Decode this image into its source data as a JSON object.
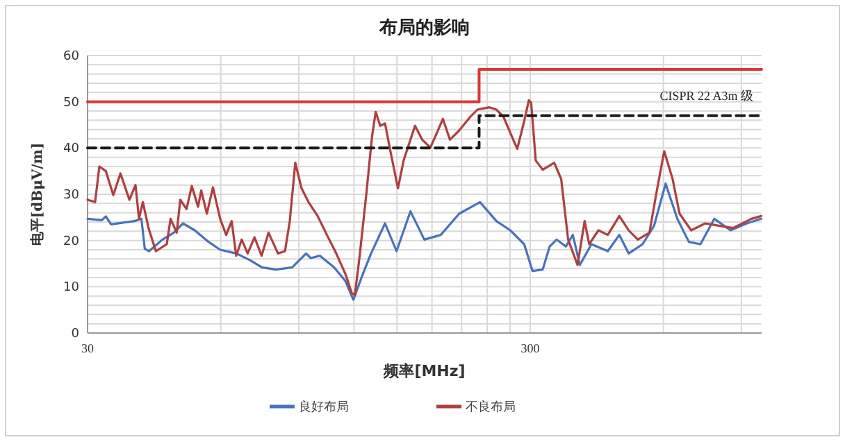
{
  "chart_data": {
    "type": "line",
    "title": "布局的影响",
    "xlabel": "频率[MHz]",
    "ylabel": "电平[dBμV/m]",
    "log": "x",
    "xlim": [
      30,
      1000
    ],
    "ylim": [
      0,
      60
    ],
    "xticks": [
      30,
      {
        "value": 60,
        "label": null
      },
      {
        "value": 90,
        "label": null
      },
      {
        "value": 120,
        "label": null
      },
      {
        "value": 150,
        "label": null
      },
      {
        "value": 180,
        "label": null
      },
      {
        "value": 210,
        "label": null
      },
      {
        "value": 240,
        "label": null
      },
      {
        "value": 270,
        "label": null
      },
      300,
      {
        "value": 600,
        "label": null
      },
      {
        "value": 900,
        "label": null
      }
    ],
    "yticks": [
      0,
      {
        "value": 2,
        "label": null
      },
      {
        "value": 4,
        "label": null
      },
      {
        "value": 6,
        "label": null
      },
      {
        "value": 8,
        "label": null
      },
      10,
      {
        "value": 12,
        "label": null
      },
      {
        "value": 14,
        "label": null
      },
      {
        "value": 16,
        "label": null
      },
      {
        "value": 18,
        "label": null
      },
      20,
      {
        "value": 22,
        "label": null
      },
      {
        "value": 24,
        "label": null
      },
      {
        "value": 26,
        "label": null
      },
      {
        "value": 28,
        "label": null
      },
      30,
      {
        "value": 32,
        "label": null
      },
      {
        "value": 34,
        "label": null
      },
      {
        "value": 36,
        "label": null
      },
      {
        "value": 38,
        "label": null
      },
      40,
      {
        "value": 42,
        "label": null
      },
      {
        "value": 44,
        "label": null
      },
      {
        "value": 46,
        "label": null
      },
      {
        "value": 48,
        "label": null
      },
      50,
      {
        "value": 52,
        "label": null
      },
      {
        "value": 54,
        "label": null
      },
      {
        "value": 56,
        "label": null
      },
      {
        "value": 58,
        "label": null
      },
      60
    ],
    "grid": true,
    "legend": "bottom",
    "annotations": [
      "CISPR 22 A3m 级"
    ],
    "series": [
      {
        "name": "良好布局",
        "color": "#4472c4",
        "x": [
          30,
          32.3,
          33.0,
          33.9,
          38.3,
          39.7,
          40.4,
          41.3,
          44.3,
          47,
          49.3,
          52.4,
          56.3,
          59.8,
          65.1,
          70,
          74.3,
          80,
          87,
          93.5,
          95.8,
          100.5,
          108.1,
          114.8,
          119.6,
          125,
          131.1,
          141,
          149.7,
          160.9,
          173,
          188.4,
          207.4,
          231.1,
          251.6,
          270.5,
          290.8,
          303.7,
          320.2,
          332,
          344.2,
          361.2,
          374.6,
          388.4,
          412.6,
          449.2,
          477,
          500.8,
          538.3,
          571.6,
          606.9,
          645,
          685,
          727.5,
          782,
          850.9,
          926,
          998
        ],
        "values": [
          24.7,
          24.4,
          25.2,
          23.5,
          24.2,
          24.7,
          18.2,
          17.7,
          20.2,
          21.7,
          23.7,
          22.2,
          19.7,
          18,
          17.2,
          15.7,
          14.2,
          13.7,
          14.2,
          17.2,
          16.2,
          16.7,
          14.2,
          11.2,
          7.2,
          12.2,
          17.2,
          23.7,
          17.7,
          26.3,
          20.2,
          21.2,
          25.8,
          28.3,
          24.2,
          22.2,
          19.2,
          13.4,
          13.7,
          18.7,
          20.2,
          18.7,
          21.2,
          14.7,
          19.2,
          17.7,
          21.2,
          17.2,
          19.2,
          23.2,
          32.3,
          24.7,
          19.7,
          19.2,
          24.7,
          22.2,
          23.7,
          24.7
        ]
      },
      {
        "name": "不良布局",
        "color": "#b83b3b",
        "x": [
          30,
          31.2,
          31.9,
          33,
          34.3,
          35.6,
          37.3,
          38.5,
          39.2,
          40,
          41.2,
          42.8,
          45.3,
          46.2,
          47.7,
          48.6,
          50.2,
          51.6,
          53.3,
          54.2,
          55.8,
          57.6,
          59.8,
          61.7,
          63.5,
          65,
          66.9,
          69,
          71.5,
          74.2,
          76.9,
          80.8,
          83.8,
          85.9,
          88.4,
          91.3,
          94.7,
          99.3,
          104.2,
          109.4,
          114.8,
          118.5,
          120.5,
          123.4,
          128,
          131.7,
          134.3,
          137.5,
          141,
          145,
          150.8,
          155.3,
          164.8,
          171,
          178.5,
          184.7,
          190.5,
          197.6,
          207.4,
          220,
          228,
          242.6,
          251.6,
          260.9,
          270.5,
          280.5,
          290.8,
          297.9,
          301.5,
          308.8,
          320.2,
          340,
          352.5,
          365.5,
          383.8,
          398.2,
          407.8,
          427.9,
          449.2,
          477,
          500.8,
          525.2,
          558,
          578.6,
          602.5,
          629.4,
          652.6,
          693.3,
          745.4,
          801.2,
          861.6,
          948.7,
          998
        ],
        "values": [
          28.8,
          28.3,
          36,
          35,
          29.8,
          34.5,
          28.8,
          32,
          24.7,
          28.3,
          22.7,
          17.7,
          19.2,
          24.7,
          21.7,
          28.8,
          26.8,
          31.8,
          27.3,
          30.8,
          25.8,
          31.5,
          24.7,
          21.2,
          24.2,
          16.7,
          20.2,
          17.2,
          20.7,
          16.7,
          21.7,
          17.2,
          17.7,
          24.2,
          36.8,
          31.3,
          28.3,
          25.3,
          21.2,
          17.2,
          12.7,
          8.7,
          8.2,
          16.2,
          30.3,
          42.3,
          47.8,
          44.8,
          45.3,
          39.3,
          31.3,
          37.3,
          44.8,
          41.8,
          40.1,
          43.3,
          46.3,
          41.8,
          43.8,
          46.8,
          48.3,
          48.8,
          48.3,
          46.8,
          43.3,
          39.8,
          45.8,
          50.3,
          49.8,
          37.3,
          35.3,
          36.8,
          33.3,
          20.2,
          14.7,
          24.2,
          19.2,
          22.2,
          21.2,
          25.3,
          22.2,
          20.2,
          21.7,
          30.3,
          39.3,
          33.3,
          25.8,
          22.2,
          23.7,
          23.2,
          22.7,
          24.7,
          25.3
        ]
      },
      {
        "color": "#e8302e",
        "x": [
          30,
          230,
          230,
          1000
        ],
        "values": [
          50,
          50,
          57,
          57
        ]
      },
      {
        "color": "#1a1a1a",
        "line_style": "dashed",
        "x": [
          30,
          230,
          230,
          1000
        ],
        "values": [
          40,
          40,
          47,
          47
        ]
      }
    ]
  }
}
